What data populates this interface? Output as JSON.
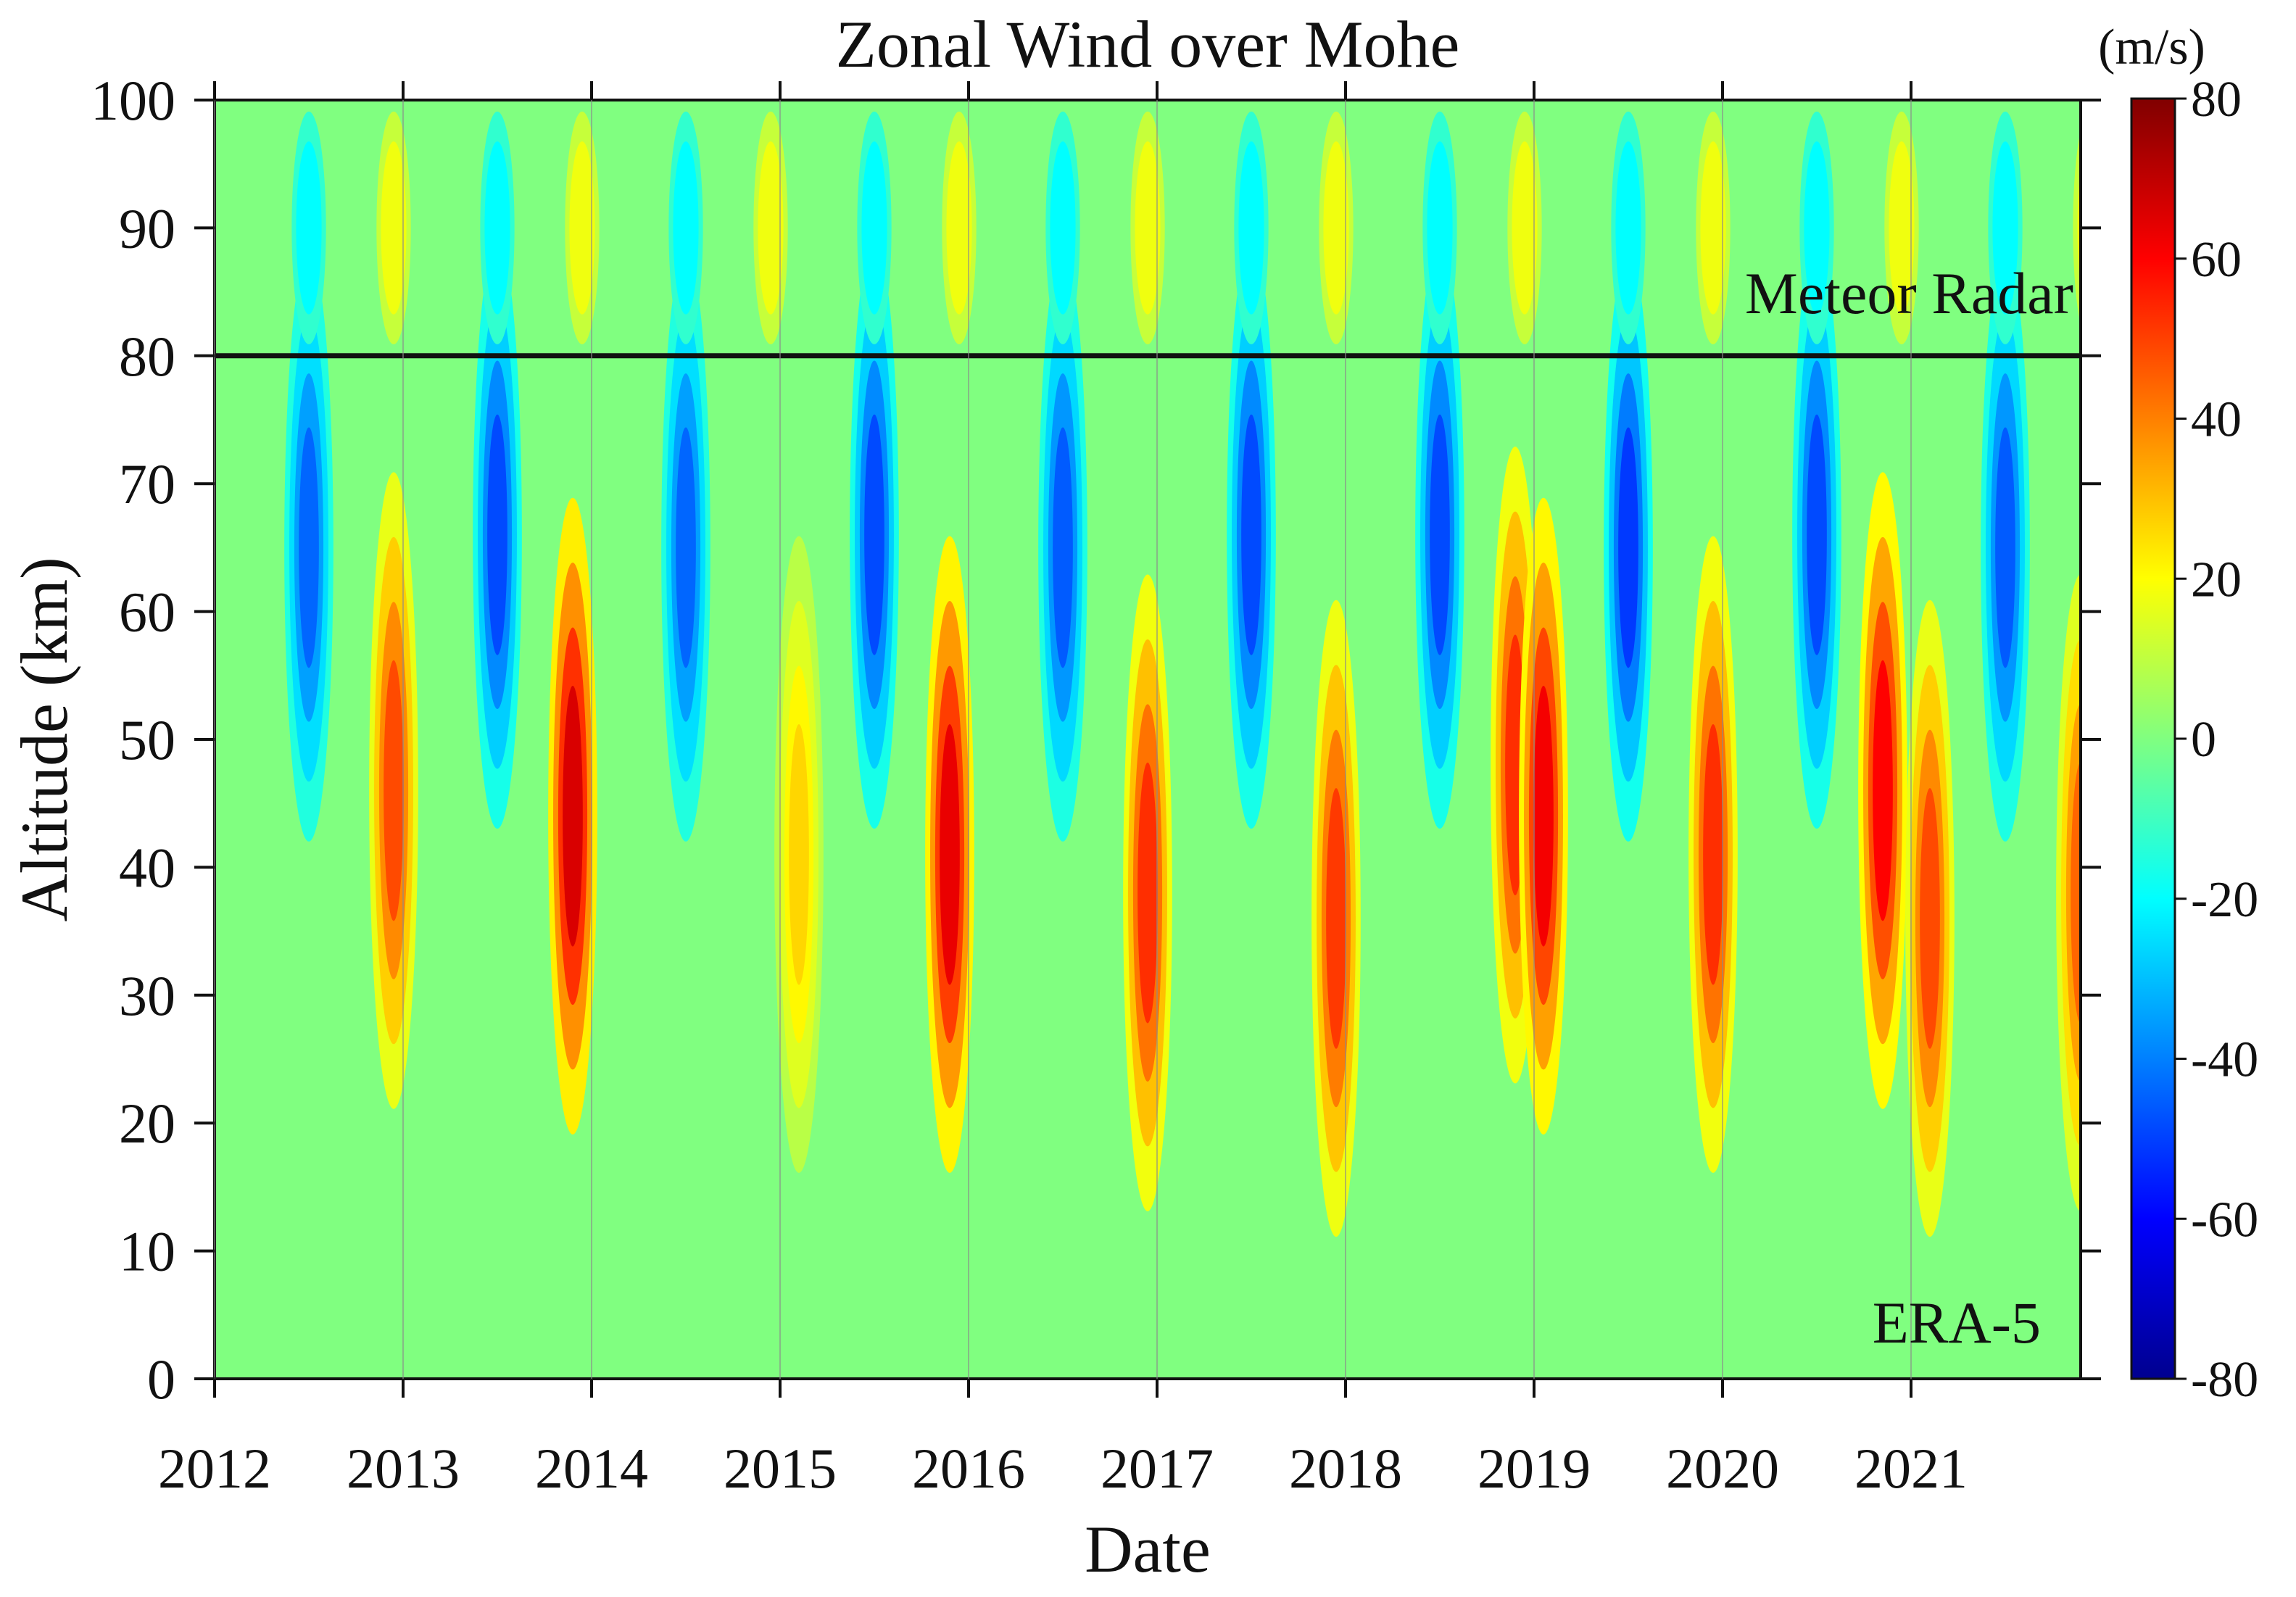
{
  "chart_data": {
    "type": "heatmap",
    "title": "Zonal Wind over Mohe",
    "xlabel": "Date",
    "ylabel": "Altitude (km)",
    "x_tick_labels": [
      "2012",
      "2013",
      "2014",
      "2015",
      "2016",
      "2017",
      "2018",
      "2019",
      "2020",
      "2021"
    ],
    "x_ticks": [
      2012,
      2013,
      2014,
      2015,
      2016,
      2017,
      2018,
      2019,
      2020,
      2021
    ],
    "xlim": [
      2012.0,
      2021.9
    ],
    "y_ticks": [
      0,
      10,
      20,
      30,
      40,
      50,
      60,
      70,
      80,
      90,
      100
    ],
    "y_tick_labels": [
      "0",
      "10",
      "20",
      "30",
      "40",
      "50",
      "60",
      "70",
      "80",
      "90",
      "100"
    ],
    "ylim": [
      0,
      100
    ],
    "colorbar": {
      "label": "(m/s)",
      "range": [
        -80,
        80
      ],
      "ticks": [
        80,
        60,
        40,
        20,
        0,
        -20,
        -40,
        -60,
        -80
      ],
      "tick_labels": [
        "80",
        "60",
        "40",
        "20",
        "0",
        "-20",
        "-40",
        "-60",
        "-80"
      ],
      "colormap": [
        "#00008f",
        "#0000ff",
        "#0080ff",
        "#00ffff",
        "#80ff80",
        "#ffff00",
        "#ff8000",
        "#ff0000",
        "#800000"
      ]
    },
    "boundary_altitude": 80,
    "regions": [
      {
        "label": "Meteor Radar",
        "altitude_range": [
          80,
          100
        ]
      },
      {
        "label": "ERA-5",
        "altitude_range": [
          0,
          80
        ]
      }
    ],
    "stratosphere_mesosphere_peaks": [
      {
        "time": 2012.5,
        "altitude": 65,
        "wind": -50
      },
      {
        "time": 2012.95,
        "altitude": 50,
        "wind": 55
      },
      {
        "time": 2013.5,
        "altitude": 66,
        "wind": -55
      },
      {
        "time": 2013.9,
        "altitude": 48,
        "wind": 75
      },
      {
        "time": 2014.5,
        "altitude": 65,
        "wind": -50
      },
      {
        "time": 2015.1,
        "altitude": 45,
        "wind": 30
      },
      {
        "time": 2015.5,
        "altitude": 66,
        "wind": -55
      },
      {
        "time": 2015.9,
        "altitude": 45,
        "wind": 72
      },
      {
        "time": 2016.5,
        "altitude": 65,
        "wind": -52
      },
      {
        "time": 2016.95,
        "altitude": 42,
        "wind": 60
      },
      {
        "time": 2017.5,
        "altitude": 66,
        "wind": -55
      },
      {
        "time": 2017.95,
        "altitude": 40,
        "wind": 58
      },
      {
        "time": 2018.5,
        "altitude": 66,
        "wind": -55
      },
      {
        "time": 2018.9,
        "altitude": 52,
        "wind": 60
      },
      {
        "time": 2019.05,
        "altitude": 48,
        "wind": 70
      },
      {
        "time": 2019.5,
        "altitude": 65,
        "wind": -58
      },
      {
        "time": 2019.95,
        "altitude": 45,
        "wind": 60
      },
      {
        "time": 2020.5,
        "altitude": 66,
        "wind": -55
      },
      {
        "time": 2020.85,
        "altitude": 50,
        "wind": 68
      },
      {
        "time": 2021.1,
        "altitude": 40,
        "wind": 55
      },
      {
        "time": 2021.5,
        "altitude": 65,
        "wind": -52
      },
      {
        "time": 2021.9,
        "altitude": 42,
        "wind": 50
      }
    ]
  }
}
